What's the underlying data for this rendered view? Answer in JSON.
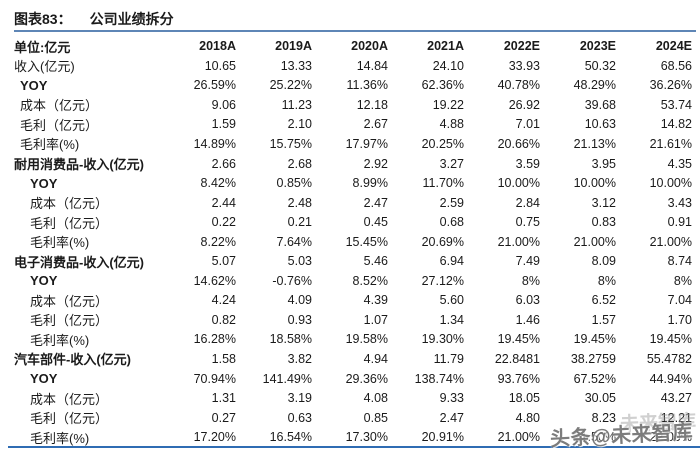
{
  "figure": {
    "label": "图表83：",
    "title": "公司业绩拆分"
  },
  "table": {
    "unit_header": "单位:亿元",
    "columns": [
      "2018A",
      "2019A",
      "2020A",
      "2021A",
      "2022E",
      "2023E",
      "2024E"
    ],
    "rows": [
      {
        "label": "收入(亿元)",
        "bold": false,
        "indent": 0,
        "values": [
          "10.65",
          "13.33",
          "14.84",
          "24.10",
          "33.93",
          "50.32",
          "68.56"
        ]
      },
      {
        "label": "YOY",
        "bold": true,
        "indent": 1,
        "values": [
          "26.59%",
          "25.22%",
          "11.36%",
          "62.36%",
          "40.78%",
          "48.29%",
          "36.26%"
        ]
      },
      {
        "label": "成本（亿元）",
        "bold": false,
        "indent": 1,
        "values": [
          "9.06",
          "11.23",
          "12.18",
          "19.22",
          "26.92",
          "39.68",
          "53.74"
        ]
      },
      {
        "label": "毛利（亿元）",
        "bold": false,
        "indent": 1,
        "values": [
          "1.59",
          "2.10",
          "2.67",
          "4.88",
          "7.01",
          "10.63",
          "14.82"
        ]
      },
      {
        "label": "毛利率(%)",
        "bold": false,
        "indent": 1,
        "values": [
          "14.89%",
          "15.75%",
          "17.97%",
          "20.25%",
          "20.66%",
          "21.13%",
          "21.61%"
        ]
      },
      {
        "label": "耐用消费品-收入(亿元)",
        "bold": true,
        "indent": 0,
        "values": [
          "2.66",
          "2.68",
          "2.92",
          "3.27",
          "3.59",
          "3.95",
          "4.35"
        ]
      },
      {
        "label": "YOY",
        "bold": true,
        "indent": 2,
        "values": [
          "8.42%",
          "0.85%",
          "8.99%",
          "11.70%",
          "10.00%",
          "10.00%",
          "10.00%"
        ]
      },
      {
        "label": "成本（亿元）",
        "bold": false,
        "indent": 2,
        "values": [
          "2.44",
          "2.48",
          "2.47",
          "2.59",
          "2.84",
          "3.12",
          "3.43"
        ]
      },
      {
        "label": "毛利（亿元）",
        "bold": false,
        "indent": 2,
        "values": [
          "0.22",
          "0.21",
          "0.45",
          "0.68",
          "0.75",
          "0.83",
          "0.91"
        ]
      },
      {
        "label": "毛利率(%)",
        "bold": false,
        "indent": 2,
        "values": [
          "8.22%",
          "7.64%",
          "15.45%",
          "20.69%",
          "21.00%",
          "21.00%",
          "21.00%"
        ]
      },
      {
        "label": "电子消费品-收入(亿元)",
        "bold": true,
        "indent": 0,
        "values": [
          "5.07",
          "5.03",
          "5.46",
          "6.94",
          "7.49",
          "8.09",
          "8.74"
        ]
      },
      {
        "label": "YOY",
        "bold": true,
        "indent": 2,
        "values": [
          "14.62%",
          "-0.76%",
          "8.52%",
          "27.12%",
          "8%",
          "8%",
          "8%"
        ]
      },
      {
        "label": "成本（亿元）",
        "bold": false,
        "indent": 2,
        "values": [
          "4.24",
          "4.09",
          "4.39",
          "5.60",
          "6.03",
          "6.52",
          "7.04"
        ]
      },
      {
        "label": "毛利（亿元）",
        "bold": false,
        "indent": 2,
        "values": [
          "0.82",
          "0.93",
          "1.07",
          "1.34",
          "1.46",
          "1.57",
          "1.70"
        ]
      },
      {
        "label": "毛利率(%)",
        "bold": false,
        "indent": 2,
        "values": [
          "16.28%",
          "18.58%",
          "19.58%",
          "19.30%",
          "19.45%",
          "19.45%",
          "19.45%"
        ]
      },
      {
        "label": "汽车部件-收入(亿元)",
        "bold": true,
        "indent": 0,
        "values": [
          "1.58",
          "3.82",
          "4.94",
          "11.79",
          "22.8481",
          "38.2759",
          "55.4782"
        ]
      },
      {
        "label": "YOY",
        "bold": true,
        "indent": 2,
        "values": [
          "70.94%",
          "141.49%",
          "29.36%",
          "138.74%",
          "93.76%",
          "67.52%",
          "44.94%"
        ]
      },
      {
        "label": "成本（亿元）",
        "bold": false,
        "indent": 2,
        "values": [
          "1.31",
          "3.19",
          "4.08",
          "9.33",
          "18.05",
          "30.05",
          "43.27"
        ]
      },
      {
        "label": "毛利（亿元）",
        "bold": false,
        "indent": 2,
        "values": [
          "0.27",
          "0.63",
          "0.85",
          "2.47",
          "4.80",
          "8.23",
          "12.21"
        ]
      },
      {
        "label": "毛利率(%)",
        "bold": false,
        "indent": 2,
        "values": [
          "17.20%",
          "16.54%",
          "17.30%",
          "20.91%",
          "21.00%",
          "21.50%",
          "22.00%"
        ]
      }
    ]
  },
  "watermark": {
    "main": "头条@未来智库",
    "ghost": "未来智库"
  },
  "colors": {
    "title_rule": "#5e86b6",
    "bottom_rule": "#2f6cb3",
    "text": "#1a1a1a"
  }
}
